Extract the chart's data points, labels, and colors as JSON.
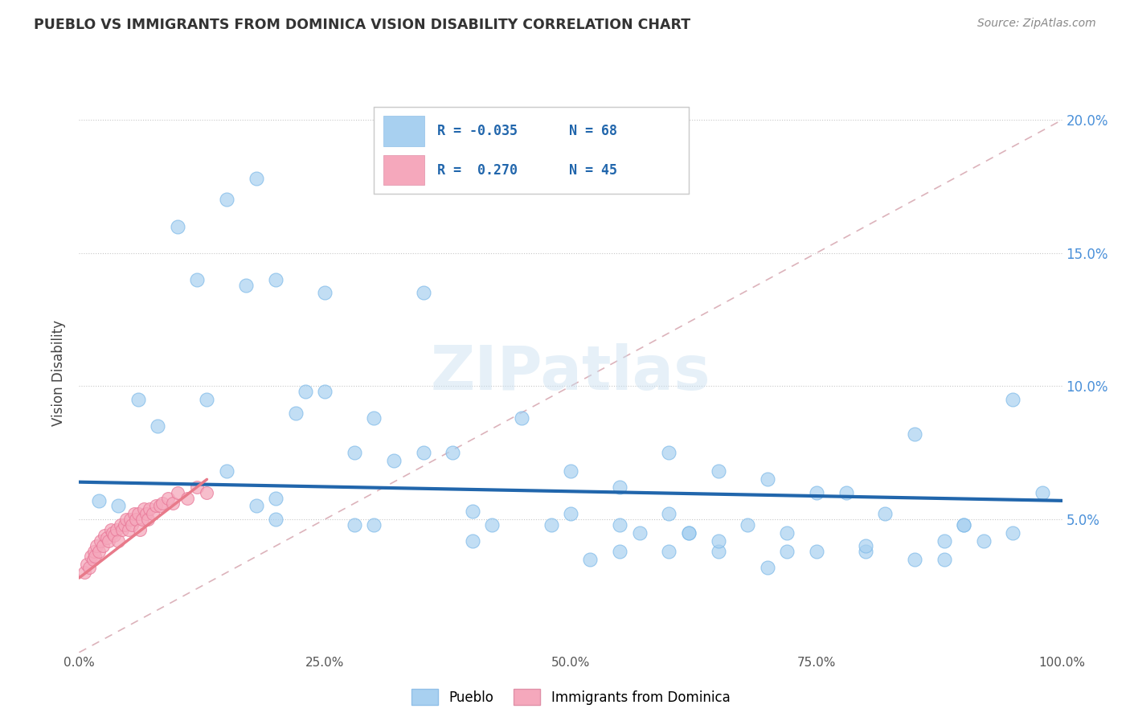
{
  "title": "PUEBLO VS IMMIGRANTS FROM DOMINICA VISION DISABILITY CORRELATION CHART",
  "source": "Source: ZipAtlas.com",
  "ylabel": "Vision Disability",
  "watermark": "ZIPatlas",
  "legend_label1": "Pueblo",
  "legend_label2": "Immigrants from Dominica",
  "R1": -0.035,
  "N1": 68,
  "R2": 0.27,
  "N2": 45,
  "color_pueblo": "#a8d0f0",
  "color_dominica": "#f5a8bc",
  "trendline_pueblo_color": "#2166ac",
  "trendline_dominica_color": "#e87a8a",
  "diag_line_color": "#d0a0a8",
  "xlim": [
    0,
    1.0
  ],
  "ylim": [
    0,
    0.21
  ],
  "xticks": [
    0.0,
    0.25,
    0.5,
    0.75,
    1.0
  ],
  "xtick_labels": [
    "0.0%",
    "25.0%",
    "50.0%",
    "75.0%",
    "100.0%"
  ],
  "ytick_labels": [
    "5.0%",
    "10.0%",
    "15.0%",
    "20.0%"
  ],
  "ytick_vals": [
    0.05,
    0.1,
    0.15,
    0.2
  ],
  "pueblo_x": [
    0.1,
    0.12,
    0.15,
    0.17,
    0.18,
    0.2,
    0.25,
    0.25,
    0.3,
    0.35,
    0.4,
    0.45,
    0.5,
    0.55,
    0.6,
    0.62,
    0.65,
    0.68,
    0.7,
    0.72,
    0.75,
    0.78,
    0.8,
    0.82,
    0.85,
    0.88,
    0.9,
    0.92,
    0.95,
    0.98,
    0.04,
    0.06,
    0.08,
    0.13,
    0.15,
    0.18,
    0.2,
    0.22,
    0.23,
    0.28,
    0.3,
    0.32,
    0.35,
    0.38,
    0.42,
    0.48,
    0.52,
    0.57,
    0.6,
    0.65,
    0.5,
    0.55,
    0.6,
    0.65,
    0.7,
    0.75,
    0.8,
    0.85,
    0.9,
    0.95,
    0.02,
    0.2,
    0.28,
    0.55,
    0.72,
    0.88,
    0.62,
    0.4
  ],
  "pueblo_y": [
    0.16,
    0.14,
    0.17,
    0.138,
    0.178,
    0.14,
    0.135,
    0.098,
    0.088,
    0.135,
    0.053,
    0.088,
    0.052,
    0.048,
    0.052,
    0.045,
    0.068,
    0.048,
    0.065,
    0.045,
    0.06,
    0.06,
    0.038,
    0.052,
    0.082,
    0.035,
    0.048,
    0.042,
    0.045,
    0.06,
    0.055,
    0.095,
    0.085,
    0.095,
    0.068,
    0.055,
    0.05,
    0.09,
    0.098,
    0.075,
    0.048,
    0.072,
    0.075,
    0.075,
    0.048,
    0.048,
    0.035,
    0.045,
    0.075,
    0.038,
    0.068,
    0.038,
    0.038,
    0.042,
    0.032,
    0.038,
    0.04,
    0.035,
    0.048,
    0.095,
    0.057,
    0.058,
    0.048,
    0.062,
    0.038,
    0.042,
    0.045,
    0.042
  ],
  "dominica_x": [
    0.005,
    0.008,
    0.01,
    0.012,
    0.014,
    0.015,
    0.016,
    0.018,
    0.02,
    0.022,
    0.024,
    0.026,
    0.028,
    0.03,
    0.032,
    0.034,
    0.036,
    0.038,
    0.04,
    0.042,
    0.044,
    0.046,
    0.048,
    0.05,
    0.052,
    0.054,
    0.056,
    0.058,
    0.06,
    0.062,
    0.064,
    0.066,
    0.068,
    0.07,
    0.072,
    0.075,
    0.078,
    0.082,
    0.085,
    0.09,
    0.095,
    0.1,
    0.11,
    0.12,
    0.13
  ],
  "dominica_y": [
    0.03,
    0.033,
    0.032,
    0.036,
    0.035,
    0.038,
    0.036,
    0.04,
    0.038,
    0.042,
    0.04,
    0.044,
    0.043,
    0.042,
    0.046,
    0.045,
    0.044,
    0.046,
    0.042,
    0.048,
    0.046,
    0.048,
    0.05,
    0.046,
    0.05,
    0.048,
    0.052,
    0.05,
    0.052,
    0.046,
    0.05,
    0.054,
    0.052,
    0.05,
    0.054,
    0.052,
    0.055,
    0.055,
    0.056,
    0.058,
    0.056,
    0.06,
    0.058,
    0.062,
    0.06
  ]
}
